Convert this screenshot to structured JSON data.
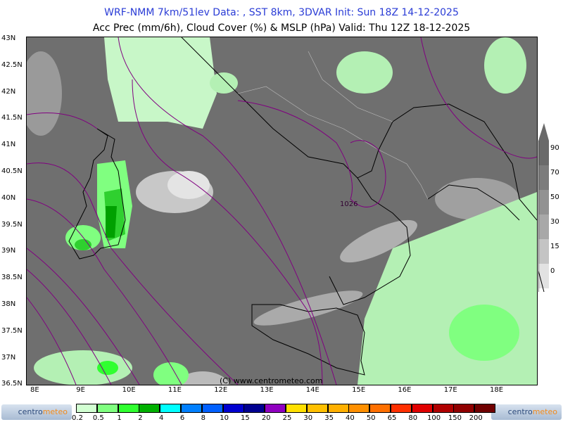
{
  "title_line1": "WRF-NMM 7km/51lev   Data: , SST 8km, 3DVAR   Init: Sun 18Z 14-12-2025",
  "title_line2": "Acc Prec (mm/6h), Cloud Cover (%) & MSLP (hPa)  Valid: Thu 12Z 18-12-2025",
  "lat_labels": [
    "43N",
    "42.5N",
    "42N",
    "41.5N",
    "41N",
    "40.5N",
    "40N",
    "39.5N",
    "39N",
    "38.5N",
    "38N",
    "37.5N",
    "37N",
    "36.5N"
  ],
  "lon_labels": [
    "8E",
    "9E",
    "10E",
    "11E",
    "12E",
    "13E",
    "14E",
    "15E",
    "16E",
    "17E",
    "18E"
  ],
  "isobar_label": "1026",
  "copyright": "(C) www.centrometeo.com",
  "cloud_scale": {
    "labels": [
      "90",
      "70",
      "50",
      "30",
      "15",
      "0"
    ],
    "colors": [
      "#6a6a6a",
      "#7c7c7c",
      "#929292",
      "#a8a8a8",
      "#c4c4c4",
      "#e2e2e2"
    ]
  },
  "precip_scale": {
    "labels": [
      "0.2",
      "0.5",
      "1",
      "2",
      "4",
      "6",
      "8",
      "10",
      "15",
      "20",
      "25",
      "30",
      "35",
      "40",
      "50",
      "65",
      "80",
      "100",
      "150",
      "200"
    ],
    "colors": [
      "#d2ffd2",
      "#80ff80",
      "#30ff30",
      "#00b000",
      "#00ffff",
      "#0080ff",
      "#0060ff",
      "#0000d0",
      "#000090",
      "#9000c0",
      "#ffe000",
      "#ffc000",
      "#ffb000",
      "#ff9000",
      "#ff7000",
      "#ff3000",
      "#e00000",
      "#b00000",
      "#900000",
      "#700000"
    ]
  },
  "logo_text": [
    "centro",
    "meteo"
  ]
}
